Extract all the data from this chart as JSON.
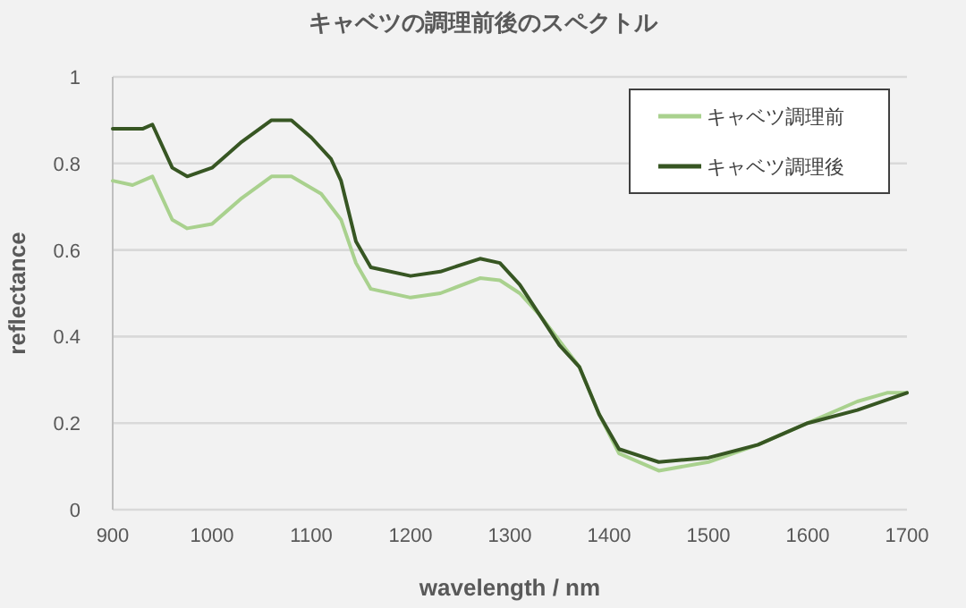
{
  "chart_data": {
    "type": "line",
    "title": "キャベツの調理前後のスペクトル",
    "xlabel": "wavelength / nm",
    "ylabel": "reflectance",
    "xlim": [
      900,
      1700
    ],
    "xticks": [
      900,
      1000,
      1100,
      1200,
      1300,
      1400,
      1500,
      1600,
      1700
    ],
    "ylim": [
      0,
      1
    ],
    "yticks": [
      0,
      0.2,
      0.4,
      0.6,
      0.8,
      1
    ],
    "grid": "y",
    "legend": "top right",
    "marker": "none",
    "line_style": "solid",
    "series": [
      {
        "name": "キャベツ調理前",
        "color": "#a9d18e",
        "x": [
          900,
          920,
          940,
          960,
          975,
          1000,
          1030,
          1060,
          1080,
          1110,
          1130,
          1145,
          1160,
          1200,
          1230,
          1270,
          1290,
          1310,
          1330,
          1350,
          1370,
          1390,
          1410,
          1450,
          1500,
          1550,
          1600,
          1650,
          1680,
          1700
        ],
        "values": [
          0.76,
          0.75,
          0.77,
          0.67,
          0.65,
          0.66,
          0.72,
          0.77,
          0.77,
          0.73,
          0.67,
          0.57,
          0.51,
          0.49,
          0.5,
          0.535,
          0.53,
          0.5,
          0.45,
          0.39,
          0.33,
          0.22,
          0.13,
          0.09,
          0.11,
          0.15,
          0.2,
          0.25,
          0.27,
          0.27
        ]
      },
      {
        "name": "キャベツ調理後",
        "color": "#375623",
        "x": [
          900,
          930,
          940,
          960,
          975,
          1000,
          1030,
          1060,
          1080,
          1100,
          1120,
          1130,
          1145,
          1160,
          1200,
          1230,
          1270,
          1290,
          1310,
          1330,
          1350,
          1370,
          1390,
          1410,
          1450,
          1500,
          1550,
          1600,
          1650,
          1700
        ],
        "values": [
          0.88,
          0.88,
          0.89,
          0.79,
          0.77,
          0.79,
          0.85,
          0.9,
          0.9,
          0.86,
          0.81,
          0.76,
          0.62,
          0.56,
          0.54,
          0.55,
          0.58,
          0.57,
          0.52,
          0.45,
          0.38,
          0.33,
          0.22,
          0.14,
          0.11,
          0.12,
          0.15,
          0.2,
          0.23,
          0.27
        ]
      }
    ]
  }
}
